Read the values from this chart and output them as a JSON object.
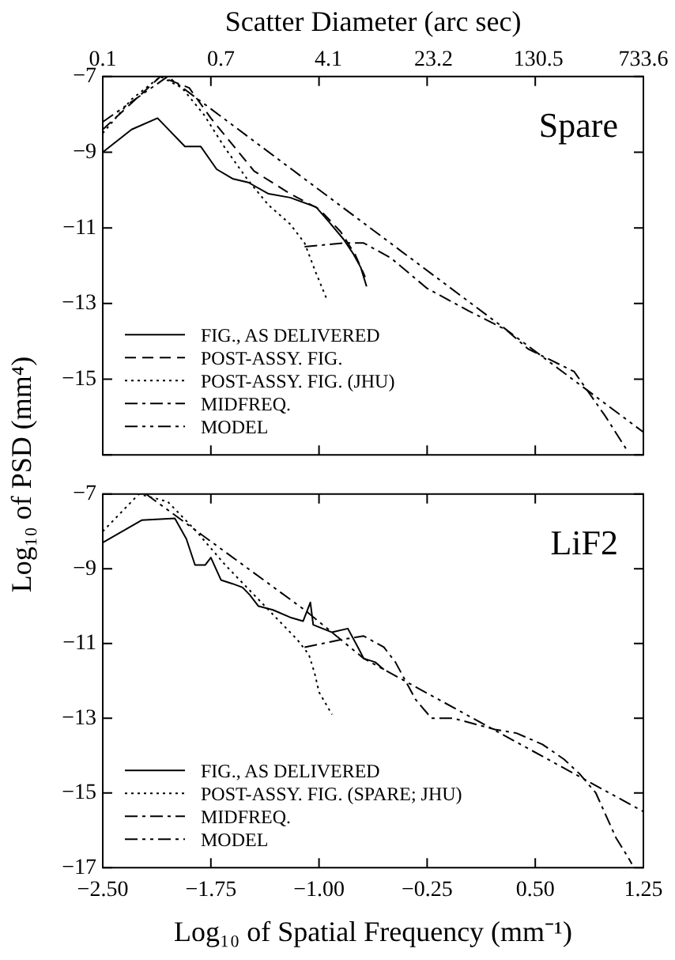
{
  "chart_data": [
    {
      "type": "line",
      "x2label": "Scatter Diameter (arc sec)",
      "ylabel": "Log₁₀ of PSD (mm⁴)",
      "xlim": [
        -2.5,
        1.25
      ],
      "xticks": [
        -2.5,
        -1.75,
        -1,
        -0.25,
        0.5,
        1.25
      ],
      "x2lim": [
        0.1,
        733.6
      ],
      "x2ticks": [
        0.1,
        0.7,
        4.1,
        23.2,
        130.5,
        733.6
      ],
      "log": "x2",
      "ylim": [
        -17,
        -7
      ],
      "yticks": [
        {
          "value": -7,
          "label": "−7"
        },
        {
          "value": -9,
          "label": "−9"
        },
        {
          "value": -11,
          "label": "−11"
        },
        {
          "value": -13,
          "label": "−13"
        },
        {
          "value": -15,
          "label": "−15"
        },
        {
          "value": -17,
          "label": null
        }
      ],
      "tick_labels": "y",
      "grid": false,
      "legend": "bottom left",
      "annotations": [
        "Spare"
      ],
      "series": [
        {
          "name": "FIG., AS DELIVERED",
          "color": "#000000",
          "line_style": "solid",
          "x": [
            -2.5,
            -2.3,
            -2.12,
            -1.93,
            -1.82,
            -1.71,
            -1.6,
            -1.49,
            -1.35,
            -1.2,
            -1.02,
            -0.94,
            -0.83,
            -0.76,
            -0.71,
            -0.67
          ],
          "values": [
            -9.0,
            -8.4,
            -8.1,
            -8.85,
            -8.85,
            -9.45,
            -9.7,
            -9.8,
            -10.1,
            -10.2,
            -10.45,
            -10.8,
            -11.3,
            -11.7,
            -12.05,
            -12.55
          ]
        },
        {
          "name": "POST-ASSY. FIG.",
          "color": "#000000",
          "line_style": "dashed",
          "x": [
            -2.5,
            -2.3,
            -2.1,
            -1.9,
            -1.75,
            -1.6,
            -1.45,
            -1.2,
            -1.0,
            -0.85,
            -0.75,
            -0.68
          ],
          "values": [
            -8.4,
            -7.7,
            -7.0,
            -7.3,
            -8.1,
            -8.8,
            -9.5,
            -10.1,
            -10.5,
            -11.1,
            -11.7,
            -12.3
          ]
        },
        {
          "name": "POST-ASSY. FIG. (JHU)",
          "color": "#000000",
          "line_style": "dotted",
          "x": [
            -2.5,
            -2.3,
            -2.1,
            -1.95,
            -1.8,
            -1.65,
            -1.5,
            -1.35,
            -1.2,
            -1.1,
            -1.02,
            -0.95
          ],
          "values": [
            -8.5,
            -7.6,
            -7.0,
            -7.3,
            -8.0,
            -8.9,
            -9.7,
            -10.4,
            -10.9,
            -11.4,
            -12.2,
            -12.85
          ]
        },
        {
          "name": "MIDFREQ.",
          "color": "#000000",
          "line_style": "dashdot",
          "x": [
            -1.1,
            -0.83,
            -0.69,
            -0.5,
            -0.25,
            0.04,
            0.3,
            0.45,
            0.77,
            0.99,
            1.14
          ],
          "values": [
            -11.5,
            -11.4,
            -11.4,
            -11.8,
            -12.6,
            -13.2,
            -13.7,
            -14.2,
            -14.8,
            -16.0,
            -16.9
          ]
        },
        {
          "name": "MODEL",
          "color": "#000000",
          "line_style": "dashdotdot",
          "x": [
            -2.5,
            -2.05,
            1.25
          ],
          "values": [
            -8.2,
            -7.0,
            -16.4
          ]
        }
      ]
    },
    {
      "type": "line",
      "xlabel": "Log₁₀ of Spatial Frequency (mm⁻¹)",
      "xlim": [
        -2.5,
        1.25
      ],
      "xticks": [
        {
          "value": -2.5,
          "label": "−2.50"
        },
        {
          "value": -1.75,
          "label": "−1.75"
        },
        {
          "value": -1,
          "label": "−1.00"
        },
        {
          "value": -0.25,
          "label": "−0.25"
        },
        {
          "value": 0.5,
          "label": "0.50"
        },
        {
          "value": 1.25,
          "label": "1.25"
        }
      ],
      "ylim": [
        -17,
        -7
      ],
      "yticks": [
        {
          "value": -7,
          "label": "−7"
        },
        {
          "value": -9,
          "label": "−9"
        },
        {
          "value": -11,
          "label": "−11"
        },
        {
          "value": -13,
          "label": "−13"
        },
        {
          "value": -15,
          "label": "−15"
        },
        {
          "value": -17,
          "label": "−17"
        }
      ],
      "grid": false,
      "legend": "bottom left",
      "annotations": [
        "LiF2"
      ],
      "series": [
        {
          "name": "FIG., AS DELIVERED",
          "color": "#000000",
          "line_style": "solid",
          "x": [
            -2.5,
            -2.23,
            -2.0,
            -1.92,
            -1.86,
            -1.79,
            -1.75,
            -1.68,
            -1.6,
            -1.53,
            -1.48,
            -1.42,
            -1.32,
            -1.2,
            -1.11,
            -1.06,
            -1.04,
            -0.91,
            -0.8,
            -0.73,
            -0.69,
            -0.61,
            -0.55
          ],
          "values": [
            -8.3,
            -7.7,
            -7.65,
            -8.2,
            -8.9,
            -8.9,
            -8.7,
            -9.3,
            -9.4,
            -9.5,
            -9.7,
            -10.0,
            -10.1,
            -10.3,
            -10.4,
            -9.9,
            -10.5,
            -10.7,
            -10.6,
            -11.1,
            -11.4,
            -11.5,
            -11.7
          ]
        },
        {
          "name": "POST-ASSY. FIG. (SPARE; JHU)",
          "color": "#000000",
          "line_style": "dotted",
          "x": [
            -2.5,
            -2.25,
            -2.05,
            -1.85,
            -1.65,
            -1.45,
            -1.3,
            -1.15,
            -1.07,
            -1.03,
            -1.0,
            -0.91
          ],
          "values": [
            -8.0,
            -7.0,
            -7.2,
            -8.0,
            -8.9,
            -9.7,
            -10.3,
            -10.9,
            -11.3,
            -11.8,
            -12.3,
            -12.9
          ]
        },
        {
          "name": "MIDFREQ.",
          "color": "#000000",
          "line_style": "dashdot",
          "x": [
            -1.1,
            -0.85,
            -0.69,
            -0.55,
            -0.47,
            -0.33,
            -0.22,
            -0.07,
            0.22,
            0.37,
            0.55,
            0.7,
            0.81,
            0.92,
            1.06,
            1.14,
            1.17
          ],
          "values": [
            -11.1,
            -10.9,
            -10.8,
            -11.1,
            -11.5,
            -12.5,
            -13.0,
            -13.0,
            -13.3,
            -13.4,
            -13.7,
            -14.1,
            -14.5,
            -15.0,
            -16.2,
            -16.7,
            -16.9
          ]
        },
        {
          "name": "MODEL",
          "color": "#000000",
          "line_style": "dashdotdot",
          "x": [
            -2.2,
            -1.1,
            -0.69,
            1.25
          ],
          "values": [
            -7.0,
            -10.1,
            -11.4,
            -15.5
          ]
        }
      ]
    }
  ]
}
